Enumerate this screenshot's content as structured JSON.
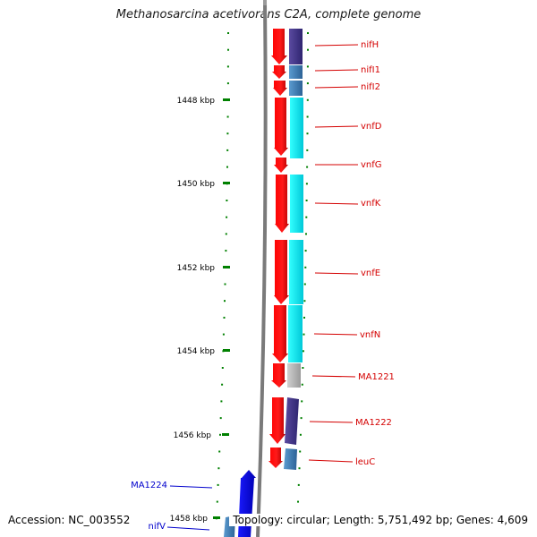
{
  "title": "Methanosarcina acetivorans C2A, complete genome",
  "footer": {
    "accession": "Accession: NC_003552",
    "summary": "Topology: circular; Length: 5,751,492 bp; Genes: 4,609"
  },
  "kbp_labels": [
    "1448 kbp",
    "1450 kbp",
    "1452 kbp",
    "1454 kbp",
    "1456 kbp",
    "1458 kbp"
  ],
  "genes_right": [
    {
      "label": "nifH",
      "color": "#d40000"
    },
    {
      "label": "nifI1",
      "color": "#d40000"
    },
    {
      "label": "nifI2",
      "color": "#d40000"
    },
    {
      "label": "vnfD",
      "color": "#d40000"
    },
    {
      "label": "vnfG",
      "color": "#d40000"
    },
    {
      "label": "vnfK",
      "color": "#d40000"
    },
    {
      "label": "vnfE",
      "color": "#d40000"
    },
    {
      "label": "vnfN",
      "color": "#d40000"
    },
    {
      "label": "MA1221",
      "color": "#d40000"
    },
    {
      "label": "MA1222",
      "color": "#d40000"
    },
    {
      "label": "leuC",
      "color": "#d40000"
    }
  ],
  "genes_left": [
    {
      "label": "MA1224",
      "color": "#0000cc"
    },
    {
      "label": "nifV",
      "color": "#0000cc"
    }
  ],
  "colors": {
    "forward_strand": "#ff0000",
    "reverse_strand": "#0000ff",
    "cog_purple": "#4a3a8c",
    "cog_steel": "#4682b4",
    "cog_cyan": "#00e5ee",
    "cog_gray": "#b8b8b8",
    "backbone": "#808080",
    "tick": "#008000"
  }
}
